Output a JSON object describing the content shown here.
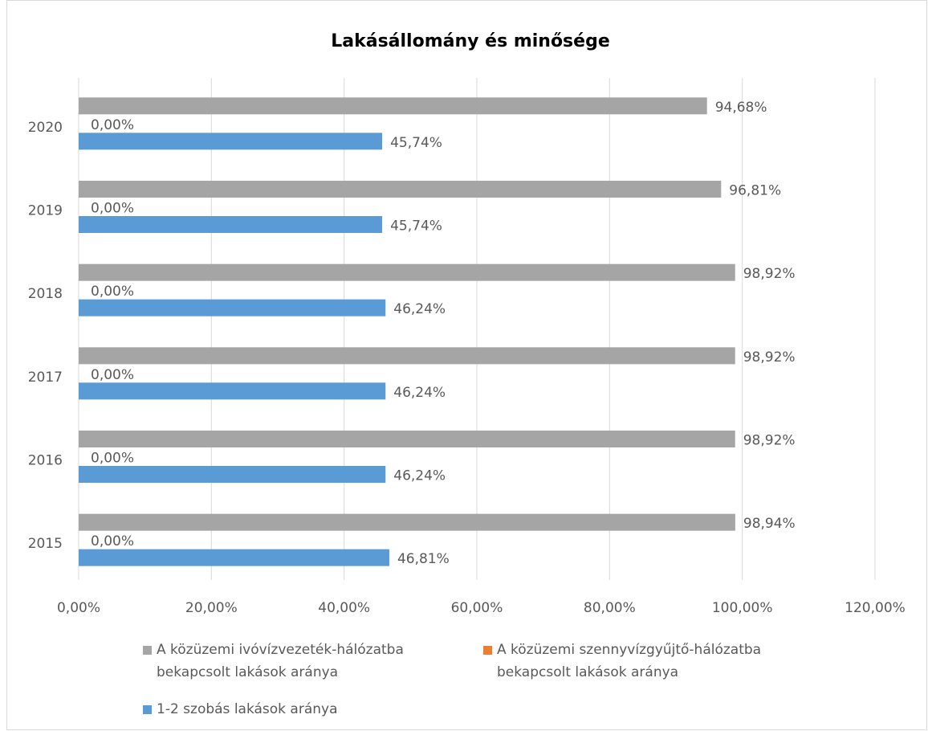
{
  "chart_data": {
    "type": "bar",
    "orientation": "horizontal",
    "title": "Lakásállomány és minősége",
    "categories": [
      "2015",
      "2016",
      "2017",
      "2018",
      "2019",
      "2020"
    ],
    "series": [
      {
        "name": "A közüzemi ivóvízvezeték-hálózatba bekapcsolt lakások aránya",
        "color": "#a5a5a5",
        "values": [
          98.94,
          98.92,
          98.92,
          98.92,
          96.81,
          94.68
        ],
        "value_labels": [
          "98,94%",
          "98,92%",
          "98,92%",
          "98,92%",
          "96,81%",
          "94,68%"
        ]
      },
      {
        "name": "A közüzemi szennyvízgyűjtő-hálózatba bekapcsolt lakások aránya",
        "color": "#ed7d31",
        "values": [
          0,
          0,
          0,
          0,
          0,
          0
        ],
        "value_labels": [
          "0,00%",
          "0,00%",
          "0,00%",
          "0,00%",
          "0,00%",
          "0,00%"
        ]
      },
      {
        "name": "1-2 szobás lakások aránya",
        "color": "#5b9bd5",
        "values": [
          46.81,
          46.24,
          46.24,
          46.24,
          45.74,
          45.74
        ],
        "value_labels": [
          "46,81%",
          "46,24%",
          "46,24%",
          "46,24%",
          "45,74%",
          "45,74%"
        ]
      }
    ],
    "xlim": [
      0,
      120
    ],
    "xticks": [
      {
        "value": 0,
        "label": "0,00%"
      },
      {
        "value": 20,
        "label": "20,00%"
      },
      {
        "value": 40,
        "label": "40,00%"
      },
      {
        "value": 60,
        "label": "60,00%"
      },
      {
        "value": 80,
        "label": "80,00%"
      },
      {
        "value": 100,
        "label": "100,00%"
      },
      {
        "value": 120,
        "label": "120,00%"
      }
    ],
    "grid": true,
    "legend": "bottom"
  }
}
